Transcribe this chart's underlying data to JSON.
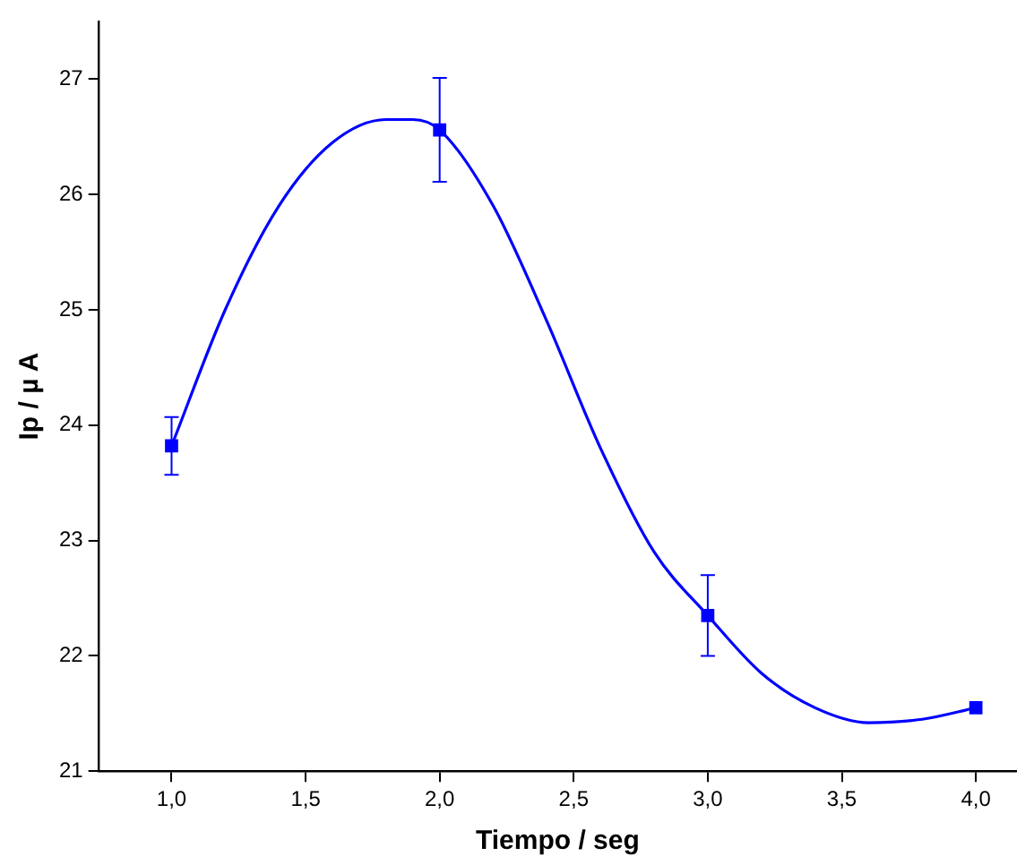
{
  "chart_data": {
    "type": "scatter",
    "xlabel": "Tiempo / seg",
    "ylabel": "Ip / µ A",
    "x": [
      1,
      2,
      3,
      4
    ],
    "series": [
      {
        "type": "scatter",
        "color": "#0000ff",
        "values": [
          23.82,
          26.56,
          22.35,
          21.55
        ],
        "errors": [
          0.25,
          0.45,
          0.35,
          null
        ],
        "marker": "square"
      },
      {
        "type": "line",
        "color": "#0000ff",
        "x": [
          1,
          1.2,
          1.4,
          1.6,
          1.8,
          1.9,
          2,
          2.2,
          2.4,
          2.6,
          2.8,
          3,
          3.2,
          3.4,
          3.6,
          3.8,
          4
        ],
        "values": [
          23.82,
          25.0,
          25.9,
          26.45,
          26.65,
          26.65,
          26.56,
          25.9,
          24.9,
          23.8,
          22.9,
          22.35,
          21.85,
          21.55,
          21.42,
          21.45,
          21.55
        ],
        "marker": "none",
        "line_style": "solid"
      }
    ],
    "xlim": [
      0.73,
      4.15
    ],
    "xticks": [
      {
        "value": 1,
        "label": "1,0"
      },
      {
        "value": 1.5,
        "label": "1,5"
      },
      {
        "value": 2,
        "label": "2,0"
      },
      {
        "value": 2.5,
        "label": "2,5"
      },
      {
        "value": 3,
        "label": "3,0"
      },
      {
        "value": 3.5,
        "label": "3,5"
      },
      {
        "value": 4,
        "label": "4,0"
      }
    ],
    "ylim": [
      21,
      27.5
    ],
    "yticks": [
      21,
      22,
      23,
      24,
      25,
      26,
      27
    ],
    "grid": false,
    "legend": false
  }
}
